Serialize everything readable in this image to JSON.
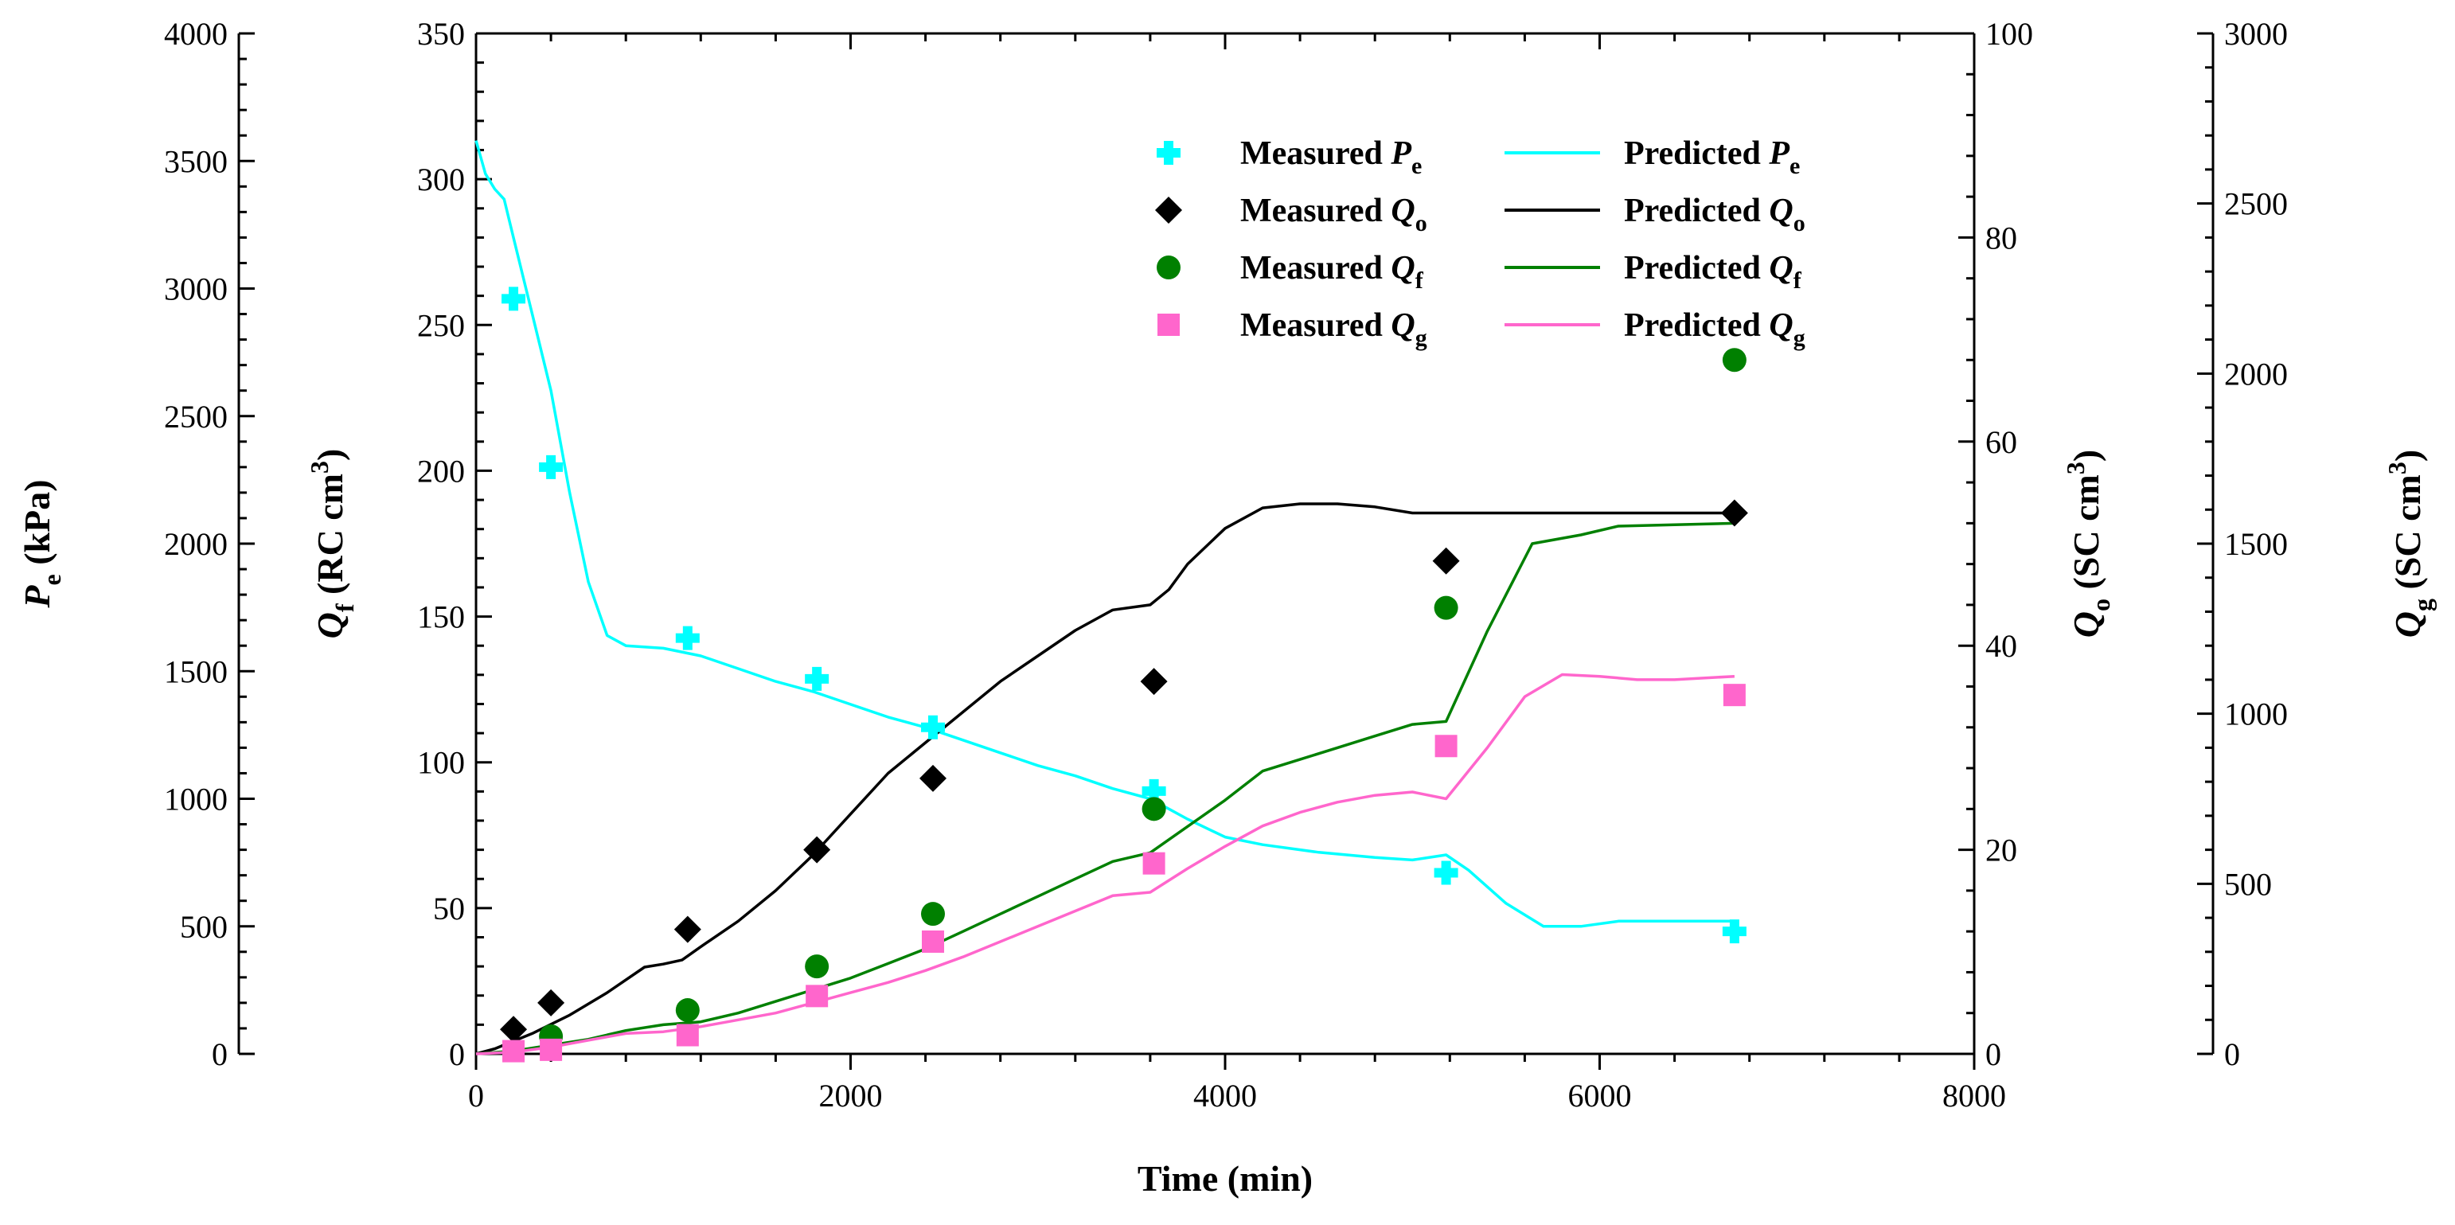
{
  "chart_data": {
    "type": "line",
    "x": {
      "label": "Time (min)",
      "range": [
        0,
        8000
      ],
      "ticks": [
        0,
        2000,
        4000,
        6000,
        8000
      ]
    },
    "axes": {
      "pe": {
        "label_main": "P",
        "label_sub": "e",
        "label_unit": " (kPa)",
        "range": [
          0,
          4000
        ],
        "ticks": [
          0,
          500,
          1000,
          1500,
          2000,
          2500,
          3000,
          3500,
          4000
        ],
        "color": "#00ffff"
      },
      "qf": {
        "label_main": "Q",
        "label_sub": "f",
        "label_unit": " (RC cm",
        "label_sup": "3",
        "label_close": ")",
        "range": [
          0,
          350
        ],
        "ticks": [
          0,
          50,
          100,
          150,
          200,
          250,
          300,
          350
        ],
        "color": "#008000"
      },
      "qo": {
        "label_main": "Q",
        "label_sub": "o",
        "label_unit": " (SC cm",
        "label_sup": "3",
        "label_close": ")",
        "range": [
          0,
          100
        ],
        "ticks": [
          0,
          20,
          40,
          60,
          80,
          100
        ],
        "color": "#000000"
      },
      "qg": {
        "label_main": "Q",
        "label_sub": "g",
        "label_unit": " (SC cm",
        "label_sup": "3",
        "label_close": ")",
        "range": [
          0,
          3000
        ],
        "ticks": [
          0,
          500,
          1000,
          1500,
          2000,
          2500,
          3000
        ],
        "color": "#ff66cc"
      }
    },
    "series": [
      {
        "key": "pe",
        "kind": "measured",
        "name": "Measured",
        "var": "P",
        "sub": "e",
        "marker": "cross",
        "color": "#00ffff",
        "points": [
          [
            200,
            2960
          ],
          [
            400,
            2300
          ],
          [
            1130,
            1630
          ],
          [
            1820,
            1470
          ],
          [
            2440,
            1280
          ],
          [
            3620,
            1030
          ],
          [
            5180,
            710
          ],
          [
            6720,
            480
          ]
        ]
      },
      {
        "key": "pe",
        "kind": "predicted",
        "name": "Predicted",
        "var": "P",
        "sub": "e",
        "color": "#00ffff",
        "points": [
          [
            0,
            3580
          ],
          [
            50,
            3450
          ],
          [
            100,
            3390
          ],
          [
            150,
            3350
          ],
          [
            200,
            3200
          ],
          [
            300,
            2900
          ],
          [
            400,
            2600
          ],
          [
            500,
            2200
          ],
          [
            600,
            1850
          ],
          [
            700,
            1640
          ],
          [
            800,
            1600
          ],
          [
            1000,
            1590
          ],
          [
            1200,
            1560
          ],
          [
            1400,
            1510
          ],
          [
            1600,
            1460
          ],
          [
            1800,
            1420
          ],
          [
            2000,
            1370
          ],
          [
            2200,
            1320
          ],
          [
            2400,
            1280
          ],
          [
            2600,
            1230
          ],
          [
            2800,
            1180
          ],
          [
            3000,
            1130
          ],
          [
            3200,
            1090
          ],
          [
            3400,
            1040
          ],
          [
            3600,
            1000
          ],
          [
            3800,
            920
          ],
          [
            4000,
            850
          ],
          [
            4200,
            820
          ],
          [
            4500,
            790
          ],
          [
            4800,
            770
          ],
          [
            5000,
            760
          ],
          [
            5180,
            780
          ],
          [
            5300,
            720
          ],
          [
            5500,
            590
          ],
          [
            5700,
            500
          ],
          [
            5900,
            500
          ],
          [
            6100,
            520
          ],
          [
            6400,
            520
          ],
          [
            6720,
            520
          ]
        ]
      },
      {
        "key": "qo",
        "kind": "measured",
        "name": "Measured",
        "var": "Q",
        "sub": "o",
        "marker": "diamond",
        "color": "#000000",
        "points": [
          [
            200,
            2.4
          ],
          [
            400,
            5.0
          ],
          [
            1130,
            12.2
          ],
          [
            1820,
            20.0
          ],
          [
            2440,
            27.0
          ],
          [
            3620,
            36.5
          ],
          [
            5180,
            48.3
          ],
          [
            6720,
            53.0
          ]
        ]
      },
      {
        "key": "qo",
        "kind": "predicted",
        "name": "Predicted",
        "var": "Q",
        "sub": "o",
        "color": "#000000",
        "points": [
          [
            0,
            0
          ],
          [
            100,
            0.5
          ],
          [
            300,
            2.0
          ],
          [
            500,
            3.8
          ],
          [
            700,
            6.0
          ],
          [
            900,
            8.5
          ],
          [
            1000,
            8.8
          ],
          [
            1100,
            9.2
          ],
          [
            1200,
            10.5
          ],
          [
            1400,
            13.0
          ],
          [
            1600,
            16.0
          ],
          [
            1800,
            19.5
          ],
          [
            2000,
            23.5
          ],
          [
            2200,
            27.5
          ],
          [
            2400,
            30.5
          ],
          [
            2600,
            33.5
          ],
          [
            2800,
            36.5
          ],
          [
            3000,
            39.0
          ],
          [
            3200,
            41.5
          ],
          [
            3400,
            43.5
          ],
          [
            3600,
            44.0
          ],
          [
            3700,
            45.5
          ],
          [
            3800,
            48.0
          ],
          [
            4000,
            51.5
          ],
          [
            4200,
            53.5
          ],
          [
            4400,
            53.9
          ],
          [
            4600,
            53.9
          ],
          [
            4800,
            53.6
          ],
          [
            5000,
            53.0
          ],
          [
            5200,
            53.0
          ],
          [
            5600,
            53.0
          ],
          [
            6000,
            53.0
          ],
          [
            6720,
            53.0
          ]
        ]
      },
      {
        "key": "qf",
        "kind": "measured",
        "name": "Measured",
        "var": "Q",
        "sub": "f",
        "marker": "circle",
        "color": "#008000",
        "points": [
          [
            400,
            6
          ],
          [
            1130,
            15
          ],
          [
            1820,
            30
          ],
          [
            2440,
            48
          ],
          [
            3620,
            84
          ],
          [
            5180,
            153
          ],
          [
            6720,
            238
          ]
        ]
      },
      {
        "key": "qf",
        "kind": "predicted",
        "name": "Predicted",
        "var": "Q",
        "sub": "f",
        "color": "#008000",
        "points": [
          [
            0,
            0
          ],
          [
            200,
            1
          ],
          [
            400,
            3
          ],
          [
            600,
            5
          ],
          [
            800,
            8
          ],
          [
            1000,
            10
          ],
          [
            1200,
            11
          ],
          [
            1400,
            14
          ],
          [
            1600,
            18
          ],
          [
            1800,
            22
          ],
          [
            2000,
            26
          ],
          [
            2200,
            31
          ],
          [
            2400,
            36
          ],
          [
            2600,
            42
          ],
          [
            2800,
            48
          ],
          [
            3000,
            54
          ],
          [
            3200,
            60
          ],
          [
            3400,
            66
          ],
          [
            3600,
            69
          ],
          [
            3800,
            78
          ],
          [
            4000,
            87
          ],
          [
            4200,
            97
          ],
          [
            4400,
            101
          ],
          [
            4600,
            105
          ],
          [
            4800,
            109
          ],
          [
            5000,
            113
          ],
          [
            5180,
            114
          ],
          [
            5400,
            145
          ],
          [
            5640,
            175
          ],
          [
            5900,
            178
          ],
          [
            6100,
            181
          ],
          [
            6400,
            181.5
          ],
          [
            6720,
            182
          ]
        ]
      },
      {
        "key": "qg",
        "kind": "measured",
        "name": "Measured",
        "var": "Q",
        "sub": "g",
        "marker": "square",
        "color": "#ff66cc",
        "points": [
          [
            200,
            8
          ],
          [
            400,
            12
          ],
          [
            1130,
            55
          ],
          [
            1820,
            170
          ],
          [
            2440,
            330
          ],
          [
            3620,
            560
          ],
          [
            5180,
            905
          ],
          [
            6720,
            1055
          ]
        ]
      },
      {
        "key": "qg",
        "kind": "predicted",
        "name": "Predicted",
        "var": "Q",
        "sub": "g",
        "color": "#ff66cc",
        "points": [
          [
            0,
            0
          ],
          [
            200,
            5
          ],
          [
            400,
            20
          ],
          [
            600,
            40
          ],
          [
            800,
            60
          ],
          [
            1000,
            65
          ],
          [
            1200,
            80
          ],
          [
            1400,
            100
          ],
          [
            1600,
            120
          ],
          [
            1800,
            150
          ],
          [
            2000,
            180
          ],
          [
            2200,
            210
          ],
          [
            2400,
            245
          ],
          [
            2600,
            285
          ],
          [
            2800,
            330
          ],
          [
            3000,
            375
          ],
          [
            3200,
            420
          ],
          [
            3400,
            465
          ],
          [
            3600,
            475
          ],
          [
            3800,
            545
          ],
          [
            4000,
            610
          ],
          [
            4200,
            670
          ],
          [
            4400,
            710
          ],
          [
            4600,
            740
          ],
          [
            4800,
            760
          ],
          [
            5000,
            770
          ],
          [
            5180,
            750
          ],
          [
            5400,
            900
          ],
          [
            5600,
            1050
          ],
          [
            5800,
            1115
          ],
          [
            6000,
            1110
          ],
          [
            6200,
            1100
          ],
          [
            6400,
            1100
          ],
          [
            6720,
            1110
          ]
        ]
      }
    ],
    "legend": {
      "placement": "top-right inside plot",
      "rows": [
        {
          "measured_label": "Measured",
          "predicted_label": "Predicted",
          "var": "P",
          "sub": "e",
          "marker": "cross",
          "color": "#00ffff"
        },
        {
          "measured_label": "Measured",
          "predicted_label": "Predicted",
          "var": "Q",
          "sub": "o",
          "marker": "diamond",
          "color": "#000000"
        },
        {
          "measured_label": "Measured",
          "predicted_label": "Predicted",
          "var": "Q",
          "sub": "f",
          "marker": "circle",
          "color": "#008000"
        },
        {
          "measured_label": "Measured",
          "predicted_label": "Predicted",
          "var": "Q",
          "sub": "g",
          "marker": "square",
          "color": "#ff66cc"
        }
      ]
    },
    "grid": false
  }
}
